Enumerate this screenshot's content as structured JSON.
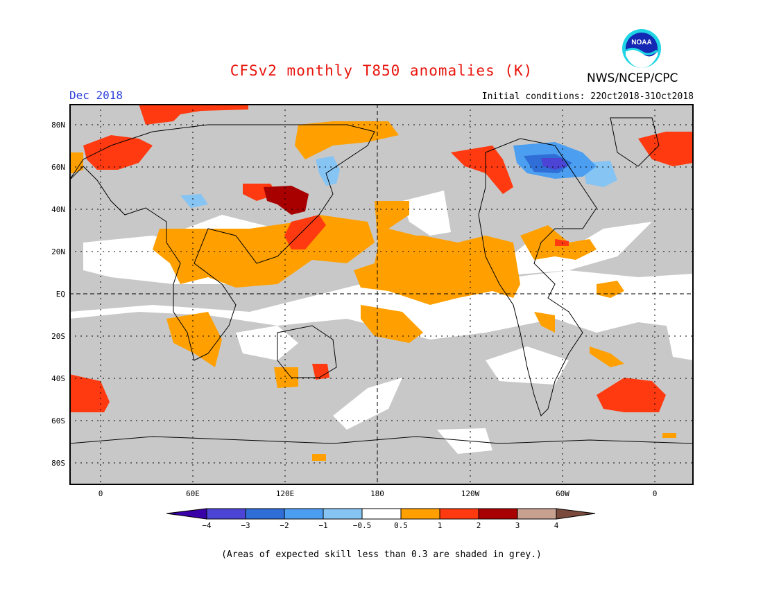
{
  "title": "CFSv2 monthly T850 anomalies (K)",
  "agency": "NWS/NCEP/CPC",
  "logo_text": "NOAA",
  "month": "Dec 2018",
  "initial_conditions": "Initial conditions: 22Oct2018-31Oct2018",
  "lat_labels": [
    "80N",
    "60N",
    "40N",
    "20N",
    "EQ",
    "20S",
    "40S",
    "60S",
    "80S"
  ],
  "lon_labels": [
    "0",
    "60E",
    "120E",
    "180",
    "120W",
    "60W",
    "0"
  ],
  "colorbar": {
    "labels": [
      "−4",
      "−3",
      "−2",
      "−1",
      "−0.5",
      "0.5",
      "1",
      "2",
      "3",
      "4"
    ],
    "colors": [
      "#3a00a8",
      "#4b44d4",
      "#2f6ed6",
      "#4c9ef0",
      "#86c4f4",
      "#ffffff",
      "#ffa000",
      "#ff3a10",
      "#a80000",
      "#c8a090",
      "#7a4a3c"
    ]
  },
  "colors": {
    "grey_low_skill": "#c8c8c8",
    "neutral": "#ffffff",
    "warm_1": "#ffa000",
    "warm_2": "#ff3a10",
    "warm_3": "#a80000",
    "cool_1": "#86c4f4",
    "cool_2": "#4c9ef0",
    "cool_3": "#2f6ed6",
    "cool_4": "#4b44d4",
    "title": "#e8140c",
    "month": "#2b40d8"
  },
  "note": "(Areas of expected skill less than 0.3 are shaded in grey.)"
}
